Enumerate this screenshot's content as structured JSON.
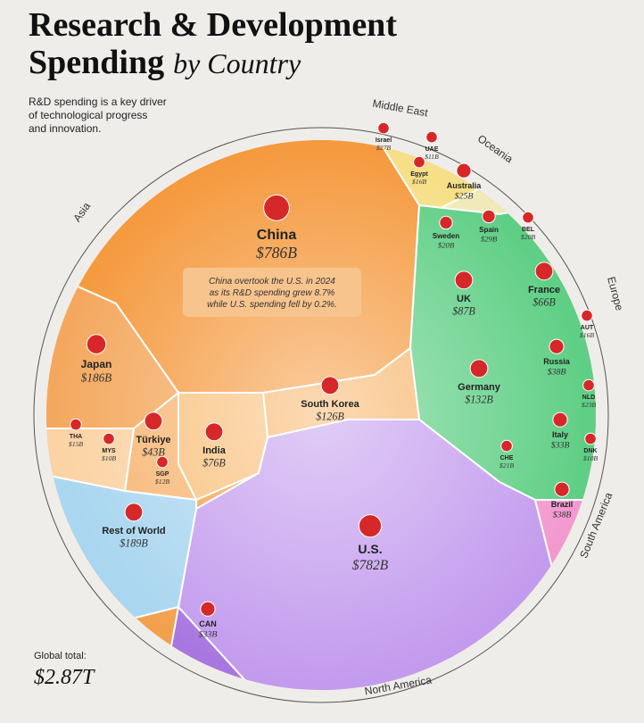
{
  "header": {
    "title_line1": "Research & Development",
    "title_line2": "Spending",
    "title_by": "by Country",
    "subtitle": [
      "R&D spending is a key driver",
      "of technological progress",
      "and innovation."
    ]
  },
  "regions": [
    "Asia",
    "Middle East",
    "Oceania",
    "Europe",
    "South America",
    "North America"
  ],
  "cells": [
    {
      "label": "China",
      "value": "$786B"
    },
    {
      "label": "Japan",
      "value": "$186B"
    },
    {
      "label": "South Korea",
      "value": "$126B"
    },
    {
      "label": "Türkiye",
      "value": "$43B"
    },
    {
      "label": "India",
      "value": "$76B"
    },
    {
      "label": "THA",
      "value": "$15B"
    },
    {
      "label": "MYS",
      "value": "$10B"
    },
    {
      "label": "SGP",
      "value": "$12B"
    },
    {
      "label": "Rest of World",
      "value": "$189B"
    },
    {
      "label": "U.S.",
      "value": "$782B"
    },
    {
      "label": "CAN",
      "value": "$33B"
    },
    {
      "label": "Brazil",
      "value": "$38B"
    },
    {
      "label": "Israel",
      "value": "$27B"
    },
    {
      "label": "UAE",
      "value": "$11B"
    },
    {
      "label": "Egypt",
      "value": "$16B"
    },
    {
      "label": "Australia",
      "value": "$25B"
    },
    {
      "label": "Sweden",
      "value": "$20B"
    },
    {
      "label": "Spain",
      "value": "$29B"
    },
    {
      "label": "BEL",
      "value": "$20B"
    },
    {
      "label": "UK",
      "value": "$87B"
    },
    {
      "label": "France",
      "value": "$66B"
    },
    {
      "label": "AUT",
      "value": "$16B"
    },
    {
      "label": "Russia",
      "value": "$38B"
    },
    {
      "label": "NLD",
      "value": "$23B"
    },
    {
      "label": "Germany",
      "value": "$132B"
    },
    {
      "label": "Italy",
      "value": "$33B"
    },
    {
      "label": "DNK",
      "value": "$10B"
    },
    {
      "label": "CHE",
      "value": "$21B"
    }
  ],
  "annotation": [
    "China overtook the U.S. in 2024",
    "as its R&D spending grew 8.7%",
    "while U.S. spending fell by 0.2%."
  ],
  "footer": {
    "label": "Global total:",
    "value": "$2.87T"
  }
}
